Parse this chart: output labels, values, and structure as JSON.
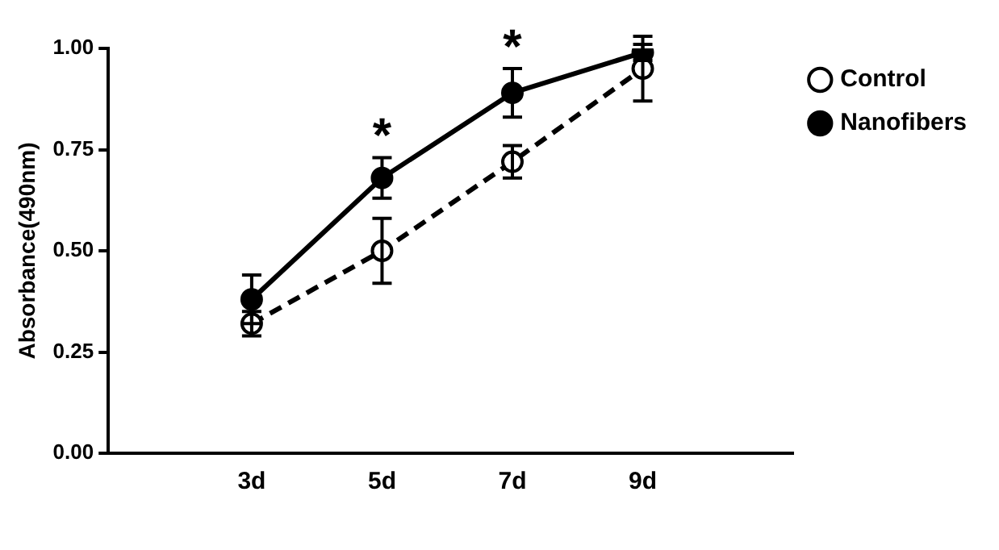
{
  "chart_data": {
    "type": "line",
    "ylabel": "Absorbance(490nm)",
    "categories": [
      "3d",
      "5d",
      "7d",
      "9d"
    ],
    "series": [
      {
        "name": "Control",
        "color": "#000000",
        "line_style": "dashed",
        "values": [
          0.32,
          0.5,
          0.72,
          0.95
        ],
        "errors": [
          0.03,
          0.08,
          0.04,
          0.08
        ]
      },
      {
        "name": "Nanofibers",
        "color": "#000000",
        "line_style": "solid",
        "values": [
          0.38,
          0.68,
          0.89,
          0.99
        ],
        "errors": [
          0.06,
          0.05,
          0.06,
          0.02
        ]
      }
    ],
    "ylim": [
      0,
      1
    ],
    "yticks": [
      {
        "value": 0,
        "label": "0.00"
      },
      {
        "value": 0.25,
        "label": "0.25"
      },
      {
        "value": 0.5,
        "label": "0.50"
      },
      {
        "value": 0.75,
        "label": "0.75"
      },
      {
        "value": 1,
        "label": "1.00"
      }
    ],
    "grid": false,
    "legend": "top right",
    "marker": "circle",
    "annotations": [
      {
        "text": "*",
        "x": "5d",
        "y": 0.75
      },
      {
        "text": "*",
        "x": "7d",
        "y": 0.97
      }
    ]
  }
}
